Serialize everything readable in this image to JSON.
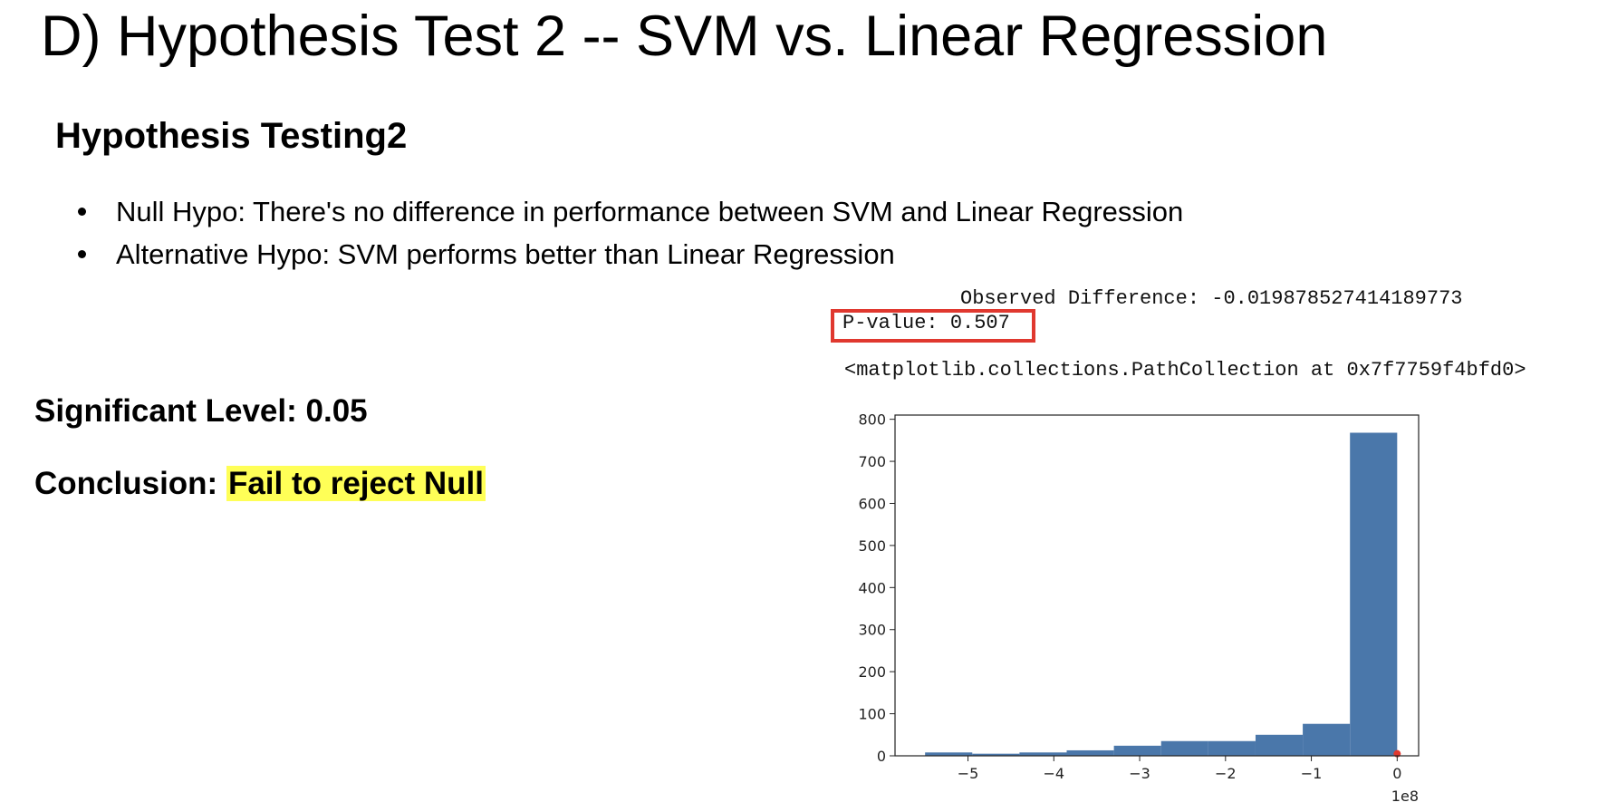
{
  "slide": {
    "title": "D) Hypothesis Test 2 -- SVM vs. Linear Regression",
    "heading": "Hypothesis Testing2",
    "bullets": [
      "Null Hypo: There's no difference in performance between SVM and Linear Regression",
      "Alternative Hypo: SVM performs better than Linear Regression"
    ],
    "significance": "Significant Level: 0.05",
    "conclusion_prefix": "Conclusion: ",
    "conclusion_value": "Fail to reject Null",
    "highlight_color": "#ffff57"
  },
  "output": {
    "observed_difference": "Observed Difference: -0.019878527414189773",
    "p_value": "P-value: 0.507",
    "p_value_box_color": "#e0382f",
    "repr": "<matplotlib.collections.PathCollection at 0x7f7759f4bfd0>"
  },
  "chart_data": {
    "type": "bar",
    "title": "",
    "xlabel": "",
    "ylabel": "",
    "x_offset_label": "1e8",
    "bar_color": "#4a77aa",
    "marker_color": "#e0382f",
    "xlim": [
      -5.85,
      0.25
    ],
    "ylim": [
      0,
      810
    ],
    "xticks": [
      -5,
      -4,
      -3,
      -2,
      -1,
      0
    ],
    "xtick_labels": [
      "−5",
      "−4",
      "−3",
      "−2",
      "−1",
      "0"
    ],
    "yticks": [
      0,
      100,
      200,
      300,
      400,
      500,
      600,
      700,
      800
    ],
    "bins": [
      {
        "x0": -5.5,
        "x1": -4.95,
        "value": 8
      },
      {
        "x0": -4.95,
        "x1": -4.4,
        "value": 5
      },
      {
        "x0": -4.4,
        "x1": -3.85,
        "value": 8
      },
      {
        "x0": -3.85,
        "x1": -3.3,
        "value": 13
      },
      {
        "x0": -3.3,
        "x1": -2.75,
        "value": 24
      },
      {
        "x0": -2.75,
        "x1": -2.2,
        "value": 35
      },
      {
        "x0": -2.2,
        "x1": -1.65,
        "value": 35
      },
      {
        "x0": -1.65,
        "x1": -1.1,
        "value": 50
      },
      {
        "x0": -1.1,
        "x1": -0.55,
        "value": 76
      },
      {
        "x0": -0.55,
        "x1": 0.0,
        "value": 768
      }
    ],
    "marker": {
      "x": 0.0,
      "y": 5
    }
  }
}
